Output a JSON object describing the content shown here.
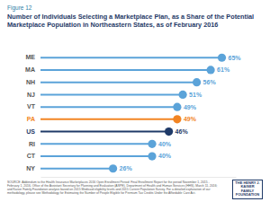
{
  "chart_data": {
    "type": "lollipop",
    "orientation": "horizontal",
    "annotations": [
      "Figure 12"
    ],
    "title": "Number of Individuals Selecting a Marketplace Plan, as a Share of the Potential Marketplace Population in Northeastern States, as of February 2016",
    "categories": [
      "ME",
      "MA",
      "NH",
      "NJ",
      "VT",
      "PA",
      "US",
      "RI",
      "CT",
      "NY"
    ],
    "values": [
      65,
      61,
      56,
      51,
      49,
      49,
      46,
      40,
      40,
      26
    ],
    "value_labels": [
      "65%",
      "61%",
      "56%",
      "51%",
      "49%",
      "49%",
      "46%",
      "40%",
      "40%",
      "26%"
    ],
    "color": "#5ba3d9",
    "colors": [
      "#5ba3d9",
      "#5ba3d9",
      "#5ba3d9",
      "#5ba3d9",
      "#5ba3d9",
      "#f28423",
      "#1f3a68",
      "#5ba3d9",
      "#5ba3d9",
      "#5ba3d9"
    ],
    "xlim": [
      0,
      70
    ],
    "data_labels": true,
    "tick_labels": "y",
    "grid": false,
    "source": "SOURCE: Addendum to the Health Insurance Marketplaces 2016 Open Enrollment Period: Final Enrollment Report for the period November 1, 2015 - February 1, 2016, Office of the Assistant Secretary for Planning and Evaluation (ASPE), Department of Health and Human Services (HHS), March 11, 2016; and Kaiser Family Foundation analysis based on 2015 Medicaid eligibility levels and 2015 Current Population Survey. For a detailed explanation of our methodology, please see Methodology for Estimating the Number of People Eligible for Premium Tax Credits Under the Affordable Care Act.",
    "logo": "THE HENRY J. KAISER FAMILY FOUNDATION"
  }
}
